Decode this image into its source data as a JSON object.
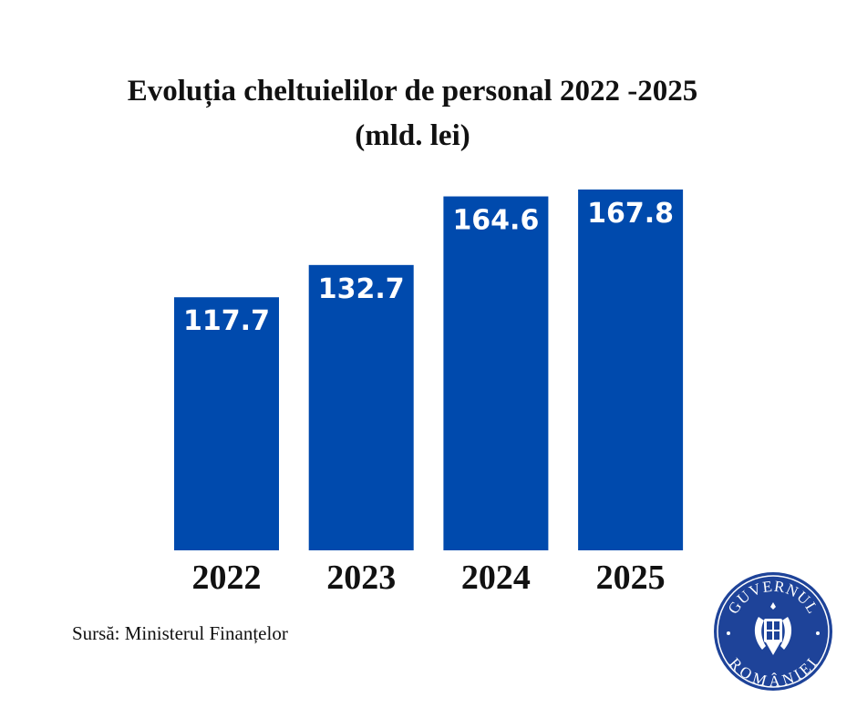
{
  "chart_data": {
    "type": "bar",
    "title": "Evoluția cheltuielilor de personal 2022 -2025",
    "subtitle": "(mld. lei)",
    "xlabel": "",
    "ylabel": "",
    "categories": [
      "2022",
      "2023",
      "2024",
      "2025"
    ],
    "values": [
      117.7,
      132.7,
      164.6,
      167.8
    ],
    "data_labels": [
      "117.7",
      "132.7",
      "164.6",
      "167.8"
    ],
    "ylim": [
      0,
      170
    ],
    "grid": false,
    "legend": "none",
    "bar_color": "#004AAD",
    "label_color": "#FFFFFF"
  },
  "footer": {
    "source": "Sursă: Ministerul Finanțelor"
  },
  "logo": {
    "top_text": "GUVERNUL",
    "bottom_text": "ROMÂNIEI",
    "color": "#1E4399"
  }
}
